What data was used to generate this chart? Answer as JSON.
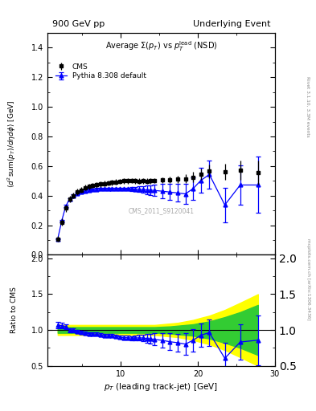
{
  "title_left": "900 GeV pp",
  "title_right": "Underlying Event",
  "plot_title": "Average $\\Sigma(p_T)$ vs $p_T^{\\mathrm{lead}}$ (NSD)",
  "ylabel_main": "$\\langle d^2 \\mathrm{sum}(p_T)/d\\eta d\\phi \\rangle$ [GeV]",
  "ylabel_ratio": "Ratio to CMS",
  "xlabel": "$p_T$ (leading track-jet) [GeV]",
  "watermark": "CMS_2011_S9120041",
  "right_label": "Rivet 3.1.10, 3.3M events",
  "right_label2": "mcplots.cern.ch [arXiv:1306.3436]",
  "cms_x": [
    1.84,
    2.37,
    2.88,
    3.38,
    3.87,
    4.38,
    4.88,
    5.38,
    5.88,
    6.38,
    6.88,
    7.38,
    7.88,
    8.38,
    8.88,
    9.38,
    9.88,
    10.4,
    10.9,
    11.4,
    11.9,
    12.4,
    12.9,
    13.4,
    13.9,
    14.4,
    15.4,
    16.4,
    17.4,
    18.4,
    19.4,
    20.4,
    21.5,
    23.5,
    25.5,
    27.8
  ],
  "cms_y": [
    0.108,
    0.222,
    0.315,
    0.375,
    0.4,
    0.425,
    0.438,
    0.455,
    0.462,
    0.468,
    0.472,
    0.478,
    0.482,
    0.485,
    0.488,
    0.492,
    0.497,
    0.5,
    0.5,
    0.502,
    0.5,
    0.498,
    0.5,
    0.498,
    0.5,
    0.502,
    0.505,
    0.508,
    0.51,
    0.515,
    0.525,
    0.545,
    0.565,
    0.56,
    0.57,
    0.555
  ],
  "cms_yerr": [
    0.018,
    0.022,
    0.025,
    0.022,
    0.02,
    0.02,
    0.018,
    0.018,
    0.018,
    0.018,
    0.018,
    0.018,
    0.018,
    0.018,
    0.018,
    0.018,
    0.018,
    0.018,
    0.018,
    0.018,
    0.018,
    0.018,
    0.018,
    0.018,
    0.018,
    0.018,
    0.02,
    0.022,
    0.025,
    0.03,
    0.035,
    0.04,
    0.045,
    0.055,
    0.065,
    0.08
  ],
  "mc_x": [
    1.84,
    2.37,
    2.88,
    3.38,
    3.87,
    4.38,
    4.88,
    5.38,
    5.88,
    6.38,
    6.88,
    7.38,
    7.88,
    8.38,
    8.88,
    9.38,
    9.88,
    10.4,
    10.9,
    11.4,
    11.9,
    12.4,
    12.9,
    13.4,
    13.9,
    14.4,
    15.4,
    16.4,
    17.4,
    18.4,
    19.4,
    20.4,
    21.5,
    23.5,
    25.5,
    27.8
  ],
  "mc_y": [
    0.108,
    0.232,
    0.33,
    0.376,
    0.4,
    0.415,
    0.425,
    0.432,
    0.438,
    0.441,
    0.443,
    0.445,
    0.446,
    0.447,
    0.447,
    0.447,
    0.446,
    0.446,
    0.445,
    0.445,
    0.444,
    0.443,
    0.441,
    0.439,
    0.437,
    0.435,
    0.43,
    0.424,
    0.418,
    0.412,
    0.448,
    0.503,
    0.543,
    0.337,
    0.472,
    0.472
  ],
  "mc_yerr": [
    0.004,
    0.006,
    0.008,
    0.008,
    0.008,
    0.008,
    0.008,
    0.008,
    0.008,
    0.008,
    0.008,
    0.008,
    0.008,
    0.008,
    0.008,
    0.008,
    0.008,
    0.008,
    0.01,
    0.012,
    0.015,
    0.018,
    0.022,
    0.028,
    0.032,
    0.038,
    0.048,
    0.055,
    0.06,
    0.07,
    0.075,
    0.085,
    0.095,
    0.115,
    0.135,
    0.19
  ],
  "ratio_mc_y": [
    1.07,
    1.06,
    1.05,
    1.0,
    0.998,
    0.978,
    0.97,
    0.951,
    0.95,
    0.946,
    0.94,
    0.932,
    0.927,
    0.922,
    0.918,
    0.912,
    0.899,
    0.893,
    0.892,
    0.888,
    0.89,
    0.89,
    0.889,
    0.882,
    0.877,
    0.869,
    0.855,
    0.836,
    0.822,
    0.803,
    0.858,
    0.928,
    0.963,
    0.604,
    0.832,
    0.858
  ],
  "ratio_mc_yerr": [
    0.045,
    0.038,
    0.033,
    0.028,
    0.026,
    0.024,
    0.023,
    0.022,
    0.022,
    0.022,
    0.022,
    0.022,
    0.022,
    0.022,
    0.022,
    0.022,
    0.023,
    0.024,
    0.026,
    0.028,
    0.032,
    0.04,
    0.05,
    0.062,
    0.072,
    0.082,
    0.098,
    0.118,
    0.128,
    0.148,
    0.158,
    0.168,
    0.188,
    0.218,
    0.248,
    0.348
  ],
  "band_yellow_lo": [
    0.93,
    0.93,
    0.93,
    0.93,
    0.93,
    0.93,
    0.93,
    0.93,
    0.93,
    0.93,
    0.93,
    0.93,
    0.93,
    0.93,
    0.93,
    0.93,
    0.93,
    0.93,
    0.93,
    0.93,
    0.93,
    0.93,
    0.93,
    0.93,
    0.93,
    0.93,
    0.92,
    0.91,
    0.9,
    0.88,
    0.86,
    0.83,
    0.8,
    0.72,
    0.62,
    0.5
  ],
  "band_yellow_hi": [
    1.07,
    1.07,
    1.07,
    1.07,
    1.07,
    1.07,
    1.07,
    1.07,
    1.07,
    1.07,
    1.07,
    1.07,
    1.07,
    1.07,
    1.07,
    1.07,
    1.07,
    1.07,
    1.07,
    1.07,
    1.07,
    1.07,
    1.07,
    1.07,
    1.07,
    1.07,
    1.08,
    1.09,
    1.1,
    1.12,
    1.14,
    1.17,
    1.2,
    1.28,
    1.38,
    1.5
  ],
  "band_green_lo": [
    0.96,
    0.96,
    0.96,
    0.96,
    0.96,
    0.96,
    0.96,
    0.96,
    0.96,
    0.96,
    0.96,
    0.96,
    0.96,
    0.96,
    0.96,
    0.96,
    0.96,
    0.96,
    0.96,
    0.96,
    0.96,
    0.96,
    0.96,
    0.96,
    0.96,
    0.96,
    0.955,
    0.95,
    0.94,
    0.93,
    0.92,
    0.9,
    0.88,
    0.82,
    0.75,
    0.65
  ],
  "band_green_hi": [
    1.04,
    1.04,
    1.04,
    1.04,
    1.04,
    1.04,
    1.04,
    1.04,
    1.04,
    1.04,
    1.04,
    1.04,
    1.04,
    1.04,
    1.04,
    1.04,
    1.04,
    1.04,
    1.04,
    1.04,
    1.04,
    1.04,
    1.04,
    1.04,
    1.04,
    1.04,
    1.045,
    1.05,
    1.06,
    1.07,
    1.08,
    1.1,
    1.12,
    1.18,
    1.25,
    1.35
  ],
  "ylim_main": [
    0.0,
    1.5
  ],
  "ylim_ratio": [
    0.5,
    2.05
  ],
  "xlim": [
    0.5,
    30
  ],
  "cms_color": "black",
  "mc_color": "blue",
  "band_green": "#33cc33",
  "band_yellow": "#ffff00",
  "background_color": "white"
}
